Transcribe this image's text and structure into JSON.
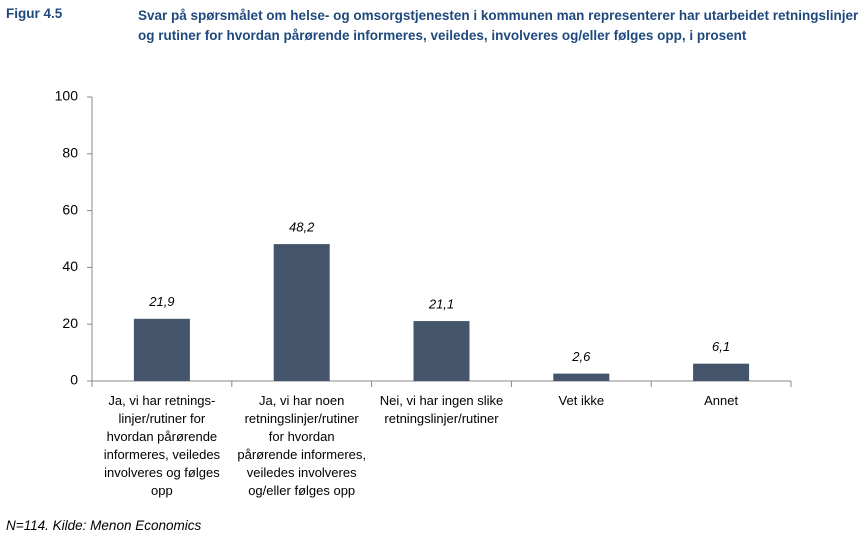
{
  "figure_label": "Figur 4.5",
  "note": "N=114. Kilde: Menon Economics",
  "chart_data": {
    "type": "bar",
    "title": "Svar på spørsmålet om helse- og omsorgstjenesten i kommunen man representerer har utarbeidet retningslinjer og rutiner for hvordan pårørende informeres, veiledes, involveres og/eller følges opp, i prosent",
    "categories": [
      "Ja, vi har retnings-\nlinjer/rutiner for\nhvordan pårørende\ninformeres, veiledes\ninvolveres og følges\nopp",
      "Ja, vi har noen\nretningslinjer/rutiner\nfor hvordan\npårørende informeres,\nveiledes involveres\nog/eller følges opp",
      "Nei, vi har ingen slike\nretningslinjer/rutiner",
      "Vet ikke",
      "Annet"
    ],
    "values": [
      21.9,
      48.2,
      21.1,
      2.6,
      6.1
    ],
    "value_labels": [
      "21,9",
      "48,2",
      "21,1",
      "2,6",
      "6,1"
    ],
    "color": "#44546a",
    "ylim": [
      0,
      100
    ],
    "yticks": [
      0,
      20,
      40,
      60,
      80,
      100
    ],
    "grid": false
  }
}
